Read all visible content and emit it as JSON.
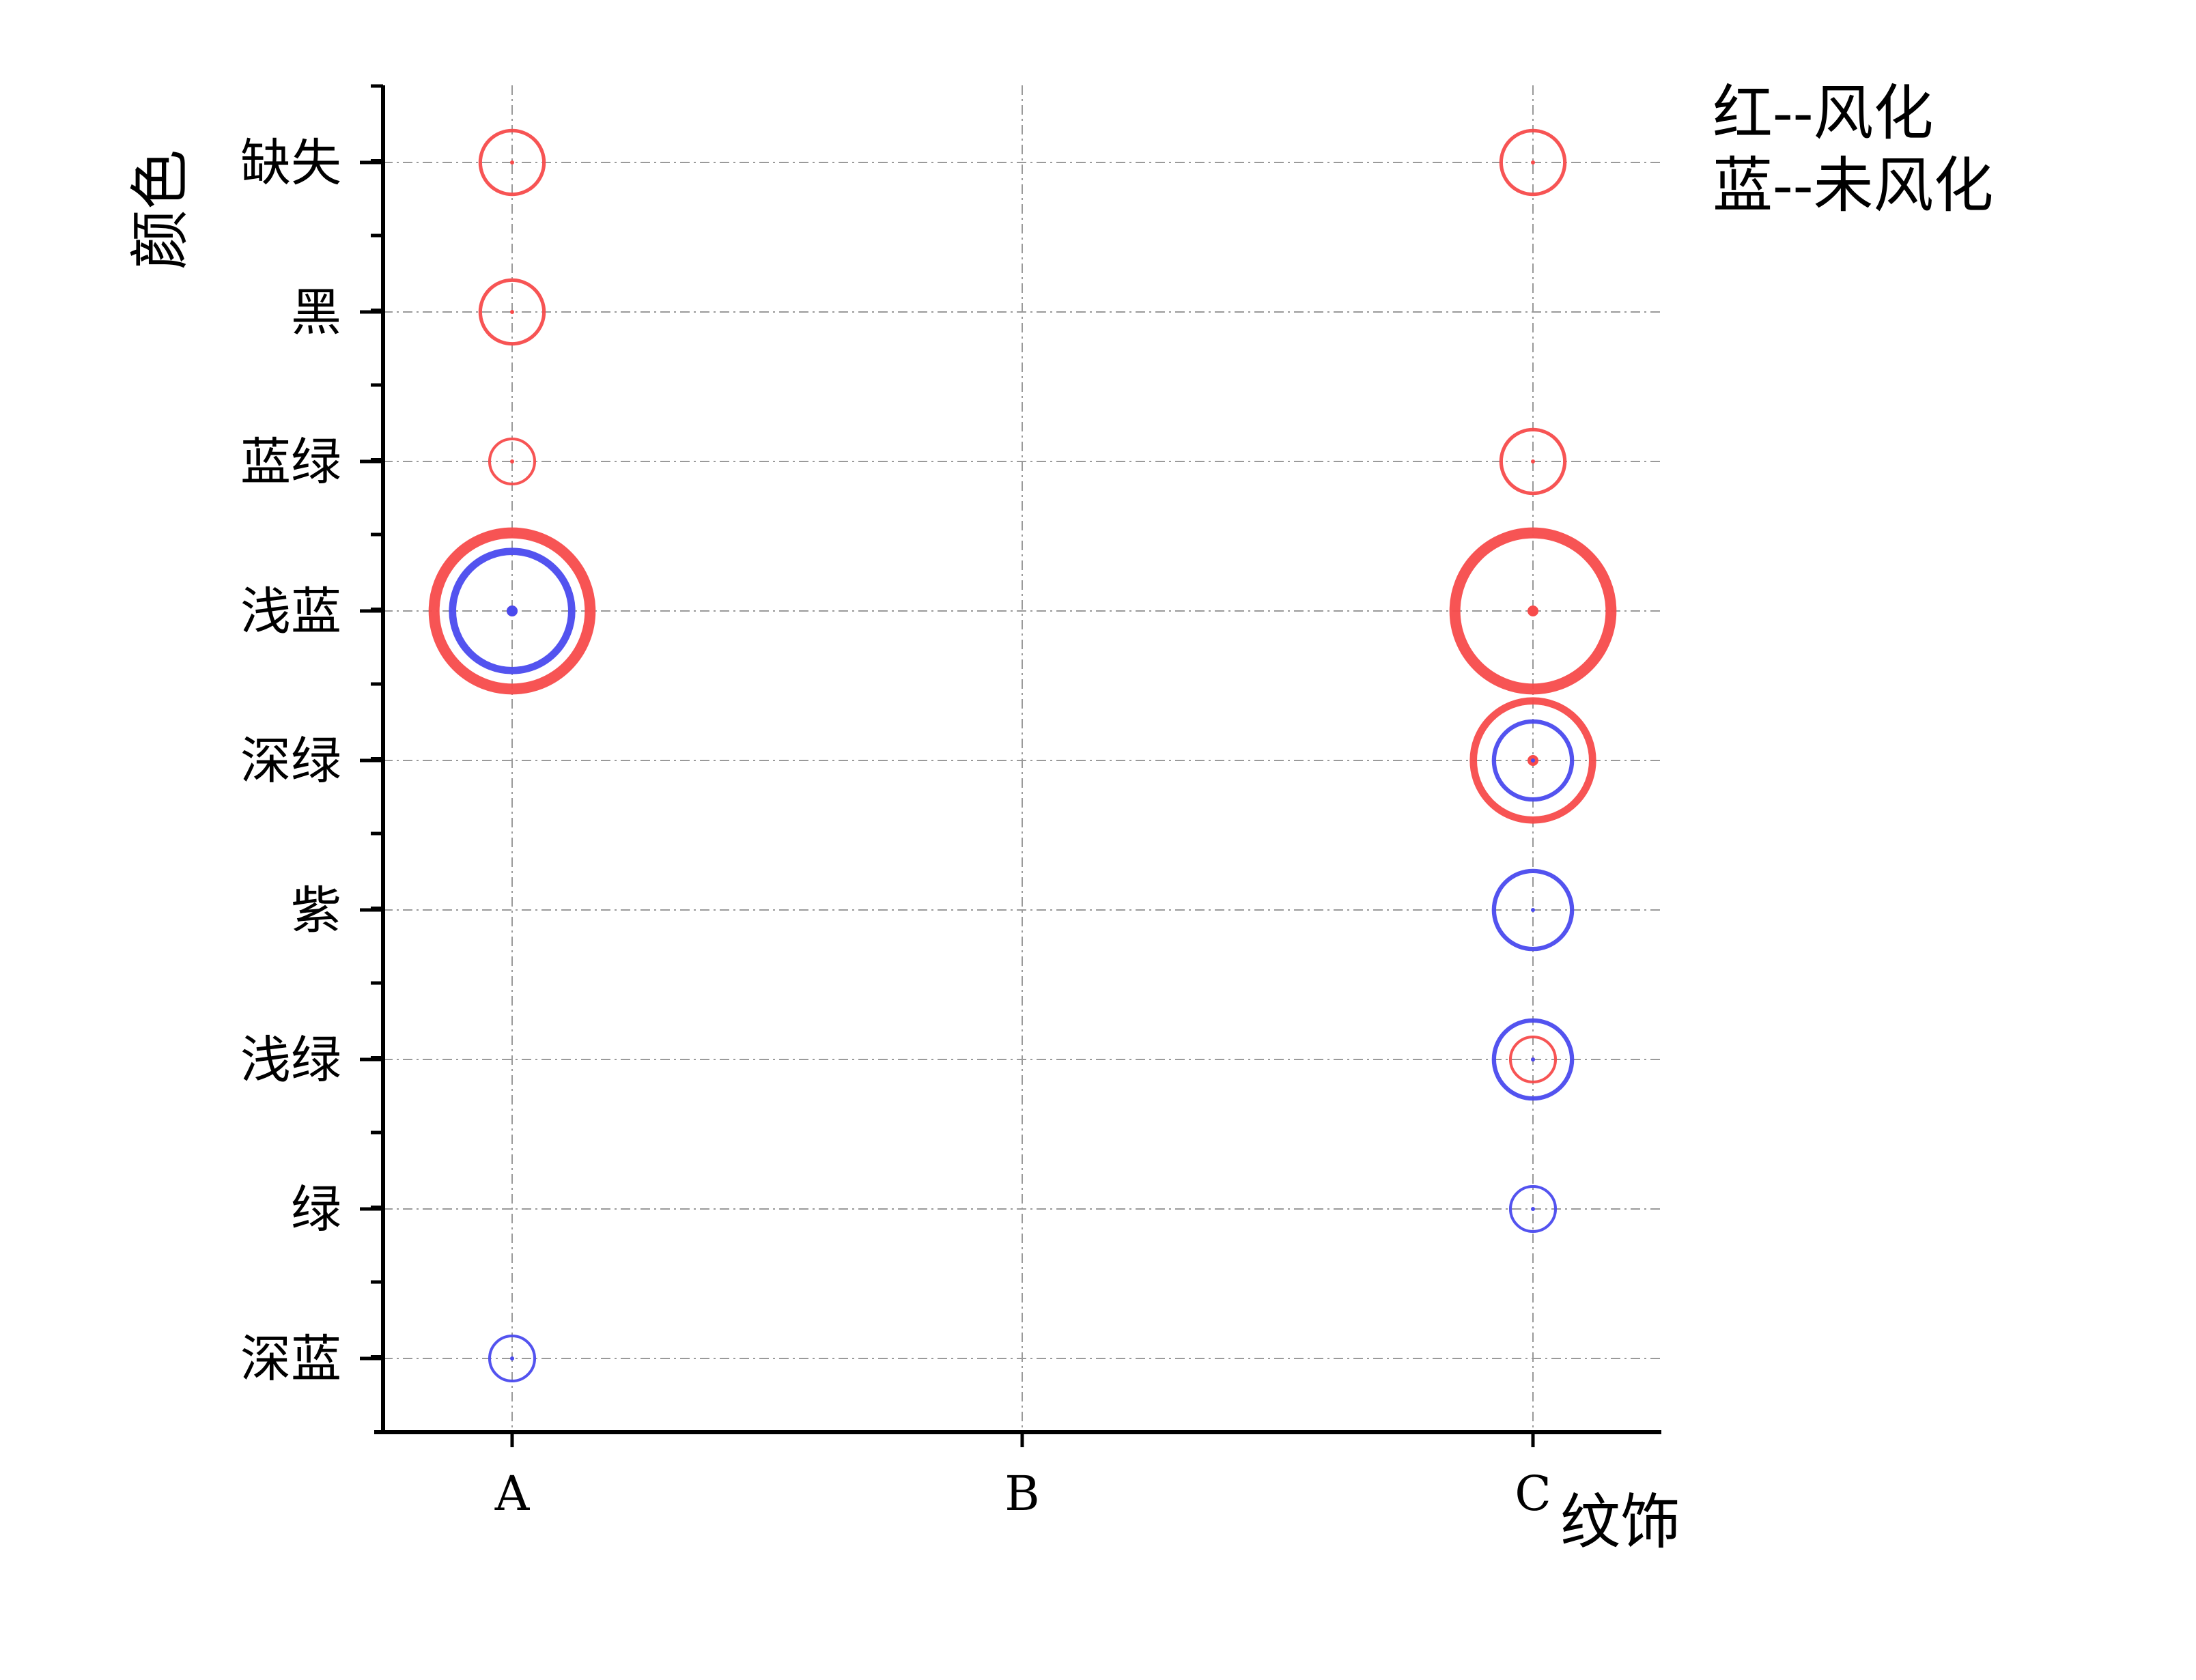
{
  "chart_data": {
    "type": "scatter",
    "subtype": "bubble",
    "xlabel": "纹饰",
    "ylabel": "颜色",
    "categories_x": [
      "A",
      "B",
      "C"
    ],
    "categories_y": [
      "深蓝",
      "绿",
      "浅绿",
      "紫",
      "深绿",
      "浅蓝",
      "蓝绿",
      "黑",
      "缺失"
    ],
    "grid": true,
    "annotations": [
      "红--风化",
      "蓝--未风化"
    ],
    "series": [
      {
        "name": "风化",
        "color": "#f74b4b",
        "points": [
          {
            "x": "A",
            "y": "缺失",
            "size": 2
          },
          {
            "x": "A",
            "y": "黑",
            "size": 2
          },
          {
            "x": "A",
            "y": "蓝绿",
            "size": 1
          },
          {
            "x": "A",
            "y": "浅蓝",
            "size": 12
          },
          {
            "x": "C",
            "y": "缺失",
            "size": 2
          },
          {
            "x": "C",
            "y": "蓝绿",
            "size": 2
          },
          {
            "x": "C",
            "y": "浅蓝",
            "size": 12
          },
          {
            "x": "C",
            "y": "深绿",
            "size": 7
          },
          {
            "x": "C",
            "y": "浅绿",
            "size": 1
          }
        ]
      },
      {
        "name": "未风化",
        "color": "#4a4aee",
        "points": [
          {
            "x": "A",
            "y": "浅蓝",
            "size": 7
          },
          {
            "x": "A",
            "y": "深蓝",
            "size": 1
          },
          {
            "x": "C",
            "y": "深绿",
            "size": 3
          },
          {
            "x": "C",
            "y": "紫",
            "size": 3
          },
          {
            "x": "C",
            "y": "浅绿",
            "size": 3
          },
          {
            "x": "C",
            "y": "绿",
            "size": 1
          }
        ]
      }
    ]
  }
}
